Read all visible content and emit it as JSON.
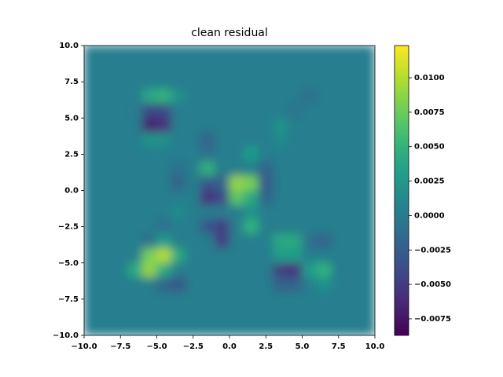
{
  "chart_data": {
    "type": "heatmap",
    "title": "clean residual",
    "xlim": [
      -10,
      10
    ],
    "ylim": [
      -10,
      10
    ],
    "zlim": [
      -0.0087,
      0.01234
    ],
    "colormap": "viridis",
    "xticks": [
      {
        "value": -10,
        "label": "−10.0"
      },
      {
        "value": -7.5,
        "label": "−7.5"
      },
      {
        "value": -5,
        "label": "−5.0"
      },
      {
        "value": -2.5,
        "label": "−2.5"
      },
      {
        "value": 0,
        "label": "0.0"
      },
      {
        "value": 2.5,
        "label": "2.5"
      },
      {
        "value": 5,
        "label": "5.0"
      },
      {
        "value": 7.5,
        "label": "7.5"
      },
      {
        "value": 10,
        "label": "10.0"
      }
    ],
    "yticks": [
      {
        "value": -10,
        "label": "−10.0"
      },
      {
        "value": -7.5,
        "label": "−7.5"
      },
      {
        "value": -5,
        "label": "−5.0"
      },
      {
        "value": -2.5,
        "label": "−2.5"
      },
      {
        "value": 0,
        "label": "0.0"
      },
      {
        "value": 2.5,
        "label": "2.5"
      },
      {
        "value": 5,
        "label": "5.0"
      },
      {
        "value": 7.5,
        "label": "7.5"
      },
      {
        "value": 10,
        "label": "10.0"
      }
    ],
    "zticks": [
      {
        "value": -0.0075,
        "label": "−0.0075"
      },
      {
        "value": -0.005,
        "label": "−0.0050"
      },
      {
        "value": -0.0025,
        "label": "−0.0025"
      },
      {
        "value": 0,
        "label": "0.0000"
      },
      {
        "value": 0.0025,
        "label": "0.0025"
      },
      {
        "value": 0.005,
        "label": "0.0050"
      },
      {
        "value": 0.0075,
        "label": "0.0075"
      },
      {
        "value": 0.01,
        "label": "0.0100"
      }
    ],
    "z": [
      [
        0.0003,
        0.0003,
        0.0003,
        0.0003,
        0.0003,
        0.0003,
        0.0003,
        0.0003,
        0.0003,
        0.0003,
        0.0003,
        0.0003,
        0.0003,
        0.0003,
        0.0003,
        0.0003,
        0.0003,
        0.0003,
        0.0003,
        0.0003
      ],
      [
        0.0003,
        0.0003,
        0.0003,
        0.0003,
        0.0003,
        0.0003,
        0.0003,
        0.0003,
        0.0003,
        0.0003,
        0.0003,
        0.0003,
        0.0003,
        0.0003,
        0.0003,
        0.0003,
        0.0003,
        0.0003,
        0.0003,
        0.0003
      ],
      [
        0.0003,
        0.0003,
        0.0003,
        0.0003,
        0.0003,
        0.0003,
        0.0003,
        0.0003,
        0.0003,
        0.0003,
        0.0003,
        0.0003,
        0.0003,
        0.0003,
        0.0003,
        0.0003,
        0.0003,
        0.0003,
        0.0003,
        0.0003
      ],
      [
        0.0003,
        0.0003,
        0.0003,
        0.0003,
        0.004,
        0.005,
        0.002,
        0.0003,
        0.0003,
        0.0003,
        0.0003,
        0.0003,
        0.0003,
        0.0003,
        0.0003,
        -0.001,
        0.0003,
        0.0003,
        0.0003,
        0.0003
      ],
      [
        0.0003,
        0.0003,
        0.0003,
        0.0,
        -0.004,
        -0.004,
        0.0003,
        0.0003,
        0.0003,
        0.0003,
        0.0003,
        0.0003,
        0.0003,
        0.0003,
        -0.0005,
        0.0003,
        0.0003,
        0.0003,
        0.0003,
        0.0003
      ],
      [
        0.0003,
        0.0003,
        0.0003,
        0.0003,
        -0.007,
        -0.006,
        0.0003,
        0.0003,
        0.0003,
        0.0003,
        0.0003,
        0.0003,
        0.0003,
        0.002,
        0.0003,
        0.0003,
        0.0003,
        0.0003,
        0.0003,
        0.0003
      ],
      [
        0.0003,
        0.0003,
        0.0003,
        0.0003,
        0.002,
        0.002,
        0.0003,
        0.0003,
        -0.002,
        0.0003,
        0.0003,
        0.0003,
        0.0003,
        0.0015,
        0.0003,
        0.0003,
        0.0003,
        0.0003,
        0.0003,
        0.0003
      ],
      [
        0.0003,
        0.0003,
        0.0003,
        0.0003,
        0.0003,
        0.0003,
        0.0003,
        0.0003,
        -0.001,
        0.0003,
        0.0003,
        0.003,
        0.0003,
        0.0003,
        0.0003,
        0.0003,
        0.0003,
        0.0003,
        0.0003,
        0.0003
      ],
      [
        0.0003,
        0.0003,
        0.0003,
        0.0003,
        0.0003,
        0.0003,
        -0.001,
        0.0003,
        0.005,
        0.0003,
        0.0003,
        0.0003,
        -0.002,
        0.0003,
        0.0003,
        0.0003,
        0.0003,
        0.0003,
        0.0003,
        0.0003
      ],
      [
        0.0003,
        0.0003,
        0.0003,
        0.0003,
        0.0003,
        0.0003,
        -0.002,
        0.0003,
        -0.003,
        -0.002,
        0.009,
        0.008,
        -0.003,
        0.0003,
        0.0003,
        0.0003,
        0.0003,
        0.0003,
        0.0003,
        0.0003
      ],
      [
        0.0003,
        0.0003,
        0.0003,
        0.0003,
        0.0003,
        0.0003,
        0.0003,
        0.0003,
        -0.006,
        -0.004,
        0.007,
        0.004,
        -0.002,
        0.0003,
        0.0003,
        0.0003,
        0.0003,
        0.0003,
        0.0003,
        0.0003
      ],
      [
        0.0003,
        0.0003,
        0.0003,
        0.0003,
        0.0003,
        0.0003,
        0.0015,
        0.0003,
        0.0003,
        0.0,
        0.0003,
        0.002,
        0.0003,
        0.0003,
        0.0003,
        0.0003,
        0.0003,
        0.0003,
        0.0003,
        0.0003
      ],
      [
        0.0003,
        0.0003,
        0.0003,
        0.0003,
        0.0003,
        -0.001,
        0.0003,
        0.0003,
        -0.003,
        -0.005,
        0.0003,
        0.005,
        0.0003,
        0.0003,
        0.0003,
        0.0003,
        0.0003,
        0.0003,
        0.0003,
        0.0003
      ],
      [
        0.0003,
        0.0003,
        0.0003,
        0.0003,
        -0.001,
        0.003,
        0.0003,
        0.0003,
        0.0003,
        -0.005,
        0.0003,
        0.0003,
        0.0003,
        0.004,
        0.004,
        -0.001,
        -0.002,
        0.0003,
        0.0003,
        0.0003
      ],
      [
        0.0003,
        0.0003,
        0.0003,
        0.0003,
        0.008,
        0.01,
        0.004,
        0.0003,
        0.0003,
        0.0003,
        0.0003,
        0.0003,
        0.0003,
        0.003,
        0.003,
        0.0003,
        0.0003,
        0.0003,
        0.0003,
        0.0003
      ],
      [
        0.0003,
        0.0003,
        0.0003,
        0.004,
        0.009,
        0.004,
        0.0003,
        0.0003,
        0.0003,
        0.0003,
        0.0003,
        0.0003,
        0.0003,
        -0.005,
        -0.006,
        0.003,
        0.005,
        0.0003,
        0.0003,
        0.0003
      ],
      [
        0.0003,
        0.0003,
        0.0003,
        0.0003,
        0.0003,
        -0.002,
        -0.003,
        0.0003,
        0.0003,
        0.0003,
        0.0003,
        0.0003,
        0.0003,
        -0.002,
        -0.002,
        0.0003,
        0.002,
        0.0003,
        0.0003,
        0.0003
      ],
      [
        0.0003,
        0.0003,
        0.0003,
        0.0003,
        0.0003,
        0.0003,
        0.0003,
        0.0003,
        0.0003,
        0.0003,
        0.0003,
        0.0003,
        0.0003,
        0.0003,
        0.0003,
        0.0003,
        0.0003,
        0.0003,
        0.0003,
        0.0003
      ],
      [
        0.0003,
        0.0003,
        0.0003,
        0.0003,
        0.0003,
        0.0003,
        0.0003,
        0.0003,
        0.0003,
        0.0003,
        0.0003,
        0.0003,
        0.0003,
        0.0003,
        0.0003,
        0.0003,
        0.0003,
        0.0003,
        0.0003,
        0.0003
      ],
      [
        0.0003,
        0.0003,
        0.0003,
        0.0003,
        0.0003,
        0.0003,
        0.0003,
        0.0003,
        0.0003,
        0.0003,
        0.0003,
        0.0003,
        0.0003,
        0.0003,
        0.0003,
        0.0003,
        0.0003,
        0.0003,
        0.0003,
        0.0003
      ]
    ]
  }
}
